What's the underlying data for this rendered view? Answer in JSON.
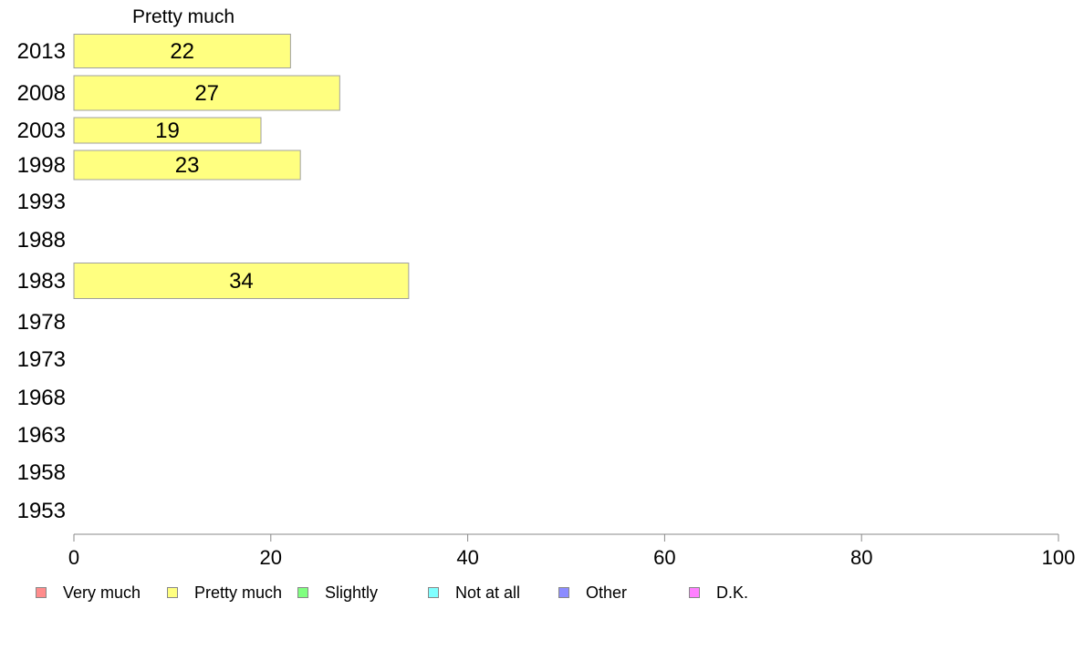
{
  "chart_data": {
    "type": "bar",
    "orientation": "horizontal",
    "title": "Pretty much",
    "categories": [
      "2013",
      "2008",
      "2003",
      "1998",
      "1993",
      "1988",
      "1983",
      "1978",
      "1973",
      "1968",
      "1963",
      "1958",
      "1953"
    ],
    "series": [
      {
        "name": "Pretty much",
        "color": "#ffff80",
        "values": [
          22,
          27,
          19,
          23,
          null,
          null,
          34,
          null,
          null,
          null,
          null,
          null,
          null
        ]
      }
    ],
    "xlim": [
      0,
      100
    ],
    "xticks": [
      0,
      20,
      40,
      60,
      80,
      100
    ],
    "grid": false,
    "legend_position": "bottom"
  },
  "legend": [
    {
      "label": "Very much",
      "color": "#ff8c8c"
    },
    {
      "label": "Pretty much",
      "color": "#ffff80"
    },
    {
      "label": "Slightly",
      "color": "#80ff80"
    },
    {
      "label": "Not at all",
      "color": "#80ffff"
    },
    {
      "label": "Other",
      "color": "#8c8cff"
    },
    {
      "label": "D.K.",
      "color": "#ff80ff"
    }
  ]
}
